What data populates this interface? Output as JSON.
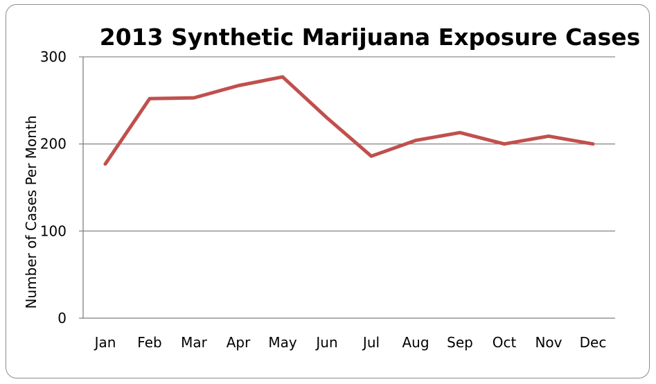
{
  "chart_data": {
    "type": "line",
    "title": "2013 Synthetic Marijuana Exposure Cases",
    "xlabel": "",
    "ylabel": "Number of Cases Per Month",
    "categories": [
      "Jan",
      "Feb",
      "Mar",
      "Apr",
      "May",
      "Jun",
      "Jul",
      "Aug",
      "Sep",
      "Oct",
      "Nov",
      "Dec"
    ],
    "series": [
      {
        "values": [
          177,
          252,
          253,
          267,
          277,
          230,
          186,
          204,
          213,
          200,
          209,
          200
        ],
        "color": "#c0504d"
      }
    ],
    "ylim": [
      0,
      300
    ],
    "yticks": [
      "0",
      "100",
      "200",
      "300"
    ],
    "grid": true,
    "legend": "none"
  }
}
